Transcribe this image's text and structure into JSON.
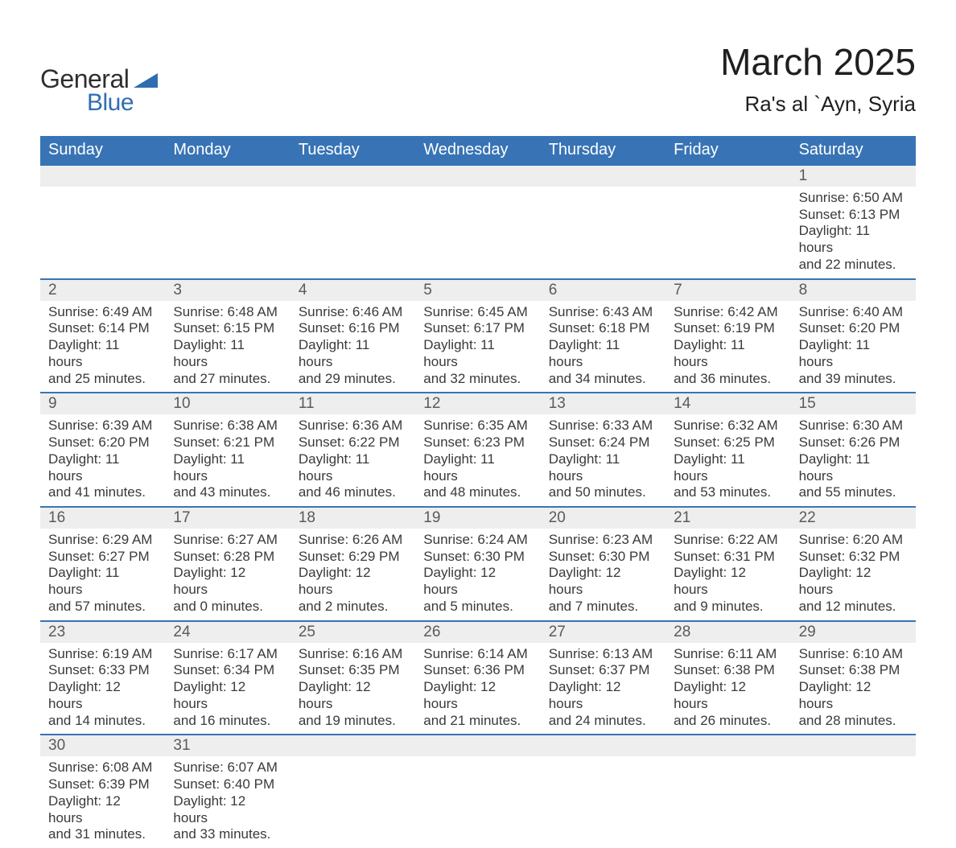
{
  "brand": {
    "part1": "General",
    "part2": "Blue"
  },
  "title": "March 2025",
  "location": "Ra's al `Ayn, Syria",
  "colors": {
    "header_bg": "#3874b5",
    "header_text": "#ffffff",
    "daynum_bg": "#eeeeee",
    "row_divider": "#3874b5",
    "body_text": "#3a3a3a",
    "brand_blue": "#2f6db2"
  },
  "weekdays": [
    "Sunday",
    "Monday",
    "Tuesday",
    "Wednesday",
    "Thursday",
    "Friday",
    "Saturday"
  ],
  "weeks": [
    [
      null,
      null,
      null,
      null,
      null,
      null,
      {
        "n": "1",
        "sr": "Sunrise: 6:50 AM",
        "ss": "Sunset: 6:13 PM",
        "d1": "Daylight: 11 hours",
        "d2": "and 22 minutes."
      }
    ],
    [
      {
        "n": "2",
        "sr": "Sunrise: 6:49 AM",
        "ss": "Sunset: 6:14 PM",
        "d1": "Daylight: 11 hours",
        "d2": "and 25 minutes."
      },
      {
        "n": "3",
        "sr": "Sunrise: 6:48 AM",
        "ss": "Sunset: 6:15 PM",
        "d1": "Daylight: 11 hours",
        "d2": "and 27 minutes."
      },
      {
        "n": "4",
        "sr": "Sunrise: 6:46 AM",
        "ss": "Sunset: 6:16 PM",
        "d1": "Daylight: 11 hours",
        "d2": "and 29 minutes."
      },
      {
        "n": "5",
        "sr": "Sunrise: 6:45 AM",
        "ss": "Sunset: 6:17 PM",
        "d1": "Daylight: 11 hours",
        "d2": "and 32 minutes."
      },
      {
        "n": "6",
        "sr": "Sunrise: 6:43 AM",
        "ss": "Sunset: 6:18 PM",
        "d1": "Daylight: 11 hours",
        "d2": "and 34 minutes."
      },
      {
        "n": "7",
        "sr": "Sunrise: 6:42 AM",
        "ss": "Sunset: 6:19 PM",
        "d1": "Daylight: 11 hours",
        "d2": "and 36 minutes."
      },
      {
        "n": "8",
        "sr": "Sunrise: 6:40 AM",
        "ss": "Sunset: 6:20 PM",
        "d1": "Daylight: 11 hours",
        "d2": "and 39 minutes."
      }
    ],
    [
      {
        "n": "9",
        "sr": "Sunrise: 6:39 AM",
        "ss": "Sunset: 6:20 PM",
        "d1": "Daylight: 11 hours",
        "d2": "and 41 minutes."
      },
      {
        "n": "10",
        "sr": "Sunrise: 6:38 AM",
        "ss": "Sunset: 6:21 PM",
        "d1": "Daylight: 11 hours",
        "d2": "and 43 minutes."
      },
      {
        "n": "11",
        "sr": "Sunrise: 6:36 AM",
        "ss": "Sunset: 6:22 PM",
        "d1": "Daylight: 11 hours",
        "d2": "and 46 minutes."
      },
      {
        "n": "12",
        "sr": "Sunrise: 6:35 AM",
        "ss": "Sunset: 6:23 PM",
        "d1": "Daylight: 11 hours",
        "d2": "and 48 minutes."
      },
      {
        "n": "13",
        "sr": "Sunrise: 6:33 AM",
        "ss": "Sunset: 6:24 PM",
        "d1": "Daylight: 11 hours",
        "d2": "and 50 minutes."
      },
      {
        "n": "14",
        "sr": "Sunrise: 6:32 AM",
        "ss": "Sunset: 6:25 PM",
        "d1": "Daylight: 11 hours",
        "d2": "and 53 minutes."
      },
      {
        "n": "15",
        "sr": "Sunrise: 6:30 AM",
        "ss": "Sunset: 6:26 PM",
        "d1": "Daylight: 11 hours",
        "d2": "and 55 minutes."
      }
    ],
    [
      {
        "n": "16",
        "sr": "Sunrise: 6:29 AM",
        "ss": "Sunset: 6:27 PM",
        "d1": "Daylight: 11 hours",
        "d2": "and 57 minutes."
      },
      {
        "n": "17",
        "sr": "Sunrise: 6:27 AM",
        "ss": "Sunset: 6:28 PM",
        "d1": "Daylight: 12 hours",
        "d2": "and 0 minutes."
      },
      {
        "n": "18",
        "sr": "Sunrise: 6:26 AM",
        "ss": "Sunset: 6:29 PM",
        "d1": "Daylight: 12 hours",
        "d2": "and 2 minutes."
      },
      {
        "n": "19",
        "sr": "Sunrise: 6:24 AM",
        "ss": "Sunset: 6:30 PM",
        "d1": "Daylight: 12 hours",
        "d2": "and 5 minutes."
      },
      {
        "n": "20",
        "sr": "Sunrise: 6:23 AM",
        "ss": "Sunset: 6:30 PM",
        "d1": "Daylight: 12 hours",
        "d2": "and 7 minutes."
      },
      {
        "n": "21",
        "sr": "Sunrise: 6:22 AM",
        "ss": "Sunset: 6:31 PM",
        "d1": "Daylight: 12 hours",
        "d2": "and 9 minutes."
      },
      {
        "n": "22",
        "sr": "Sunrise: 6:20 AM",
        "ss": "Sunset: 6:32 PM",
        "d1": "Daylight: 12 hours",
        "d2": "and 12 minutes."
      }
    ],
    [
      {
        "n": "23",
        "sr": "Sunrise: 6:19 AM",
        "ss": "Sunset: 6:33 PM",
        "d1": "Daylight: 12 hours",
        "d2": "and 14 minutes."
      },
      {
        "n": "24",
        "sr": "Sunrise: 6:17 AM",
        "ss": "Sunset: 6:34 PM",
        "d1": "Daylight: 12 hours",
        "d2": "and 16 minutes."
      },
      {
        "n": "25",
        "sr": "Sunrise: 6:16 AM",
        "ss": "Sunset: 6:35 PM",
        "d1": "Daylight: 12 hours",
        "d2": "and 19 minutes."
      },
      {
        "n": "26",
        "sr": "Sunrise: 6:14 AM",
        "ss": "Sunset: 6:36 PM",
        "d1": "Daylight: 12 hours",
        "d2": "and 21 minutes."
      },
      {
        "n": "27",
        "sr": "Sunrise: 6:13 AM",
        "ss": "Sunset: 6:37 PM",
        "d1": "Daylight: 12 hours",
        "d2": "and 24 minutes."
      },
      {
        "n": "28",
        "sr": "Sunrise: 6:11 AM",
        "ss": "Sunset: 6:38 PM",
        "d1": "Daylight: 12 hours",
        "d2": "and 26 minutes."
      },
      {
        "n": "29",
        "sr": "Sunrise: 6:10 AM",
        "ss": "Sunset: 6:38 PM",
        "d1": "Daylight: 12 hours",
        "d2": "and 28 minutes."
      }
    ],
    [
      {
        "n": "30",
        "sr": "Sunrise: 6:08 AM",
        "ss": "Sunset: 6:39 PM",
        "d1": "Daylight: 12 hours",
        "d2": "and 31 minutes."
      },
      {
        "n": "31",
        "sr": "Sunrise: 6:07 AM",
        "ss": "Sunset: 6:40 PM",
        "d1": "Daylight: 12 hours",
        "d2": "and 33 minutes."
      },
      null,
      null,
      null,
      null,
      null
    ]
  ]
}
